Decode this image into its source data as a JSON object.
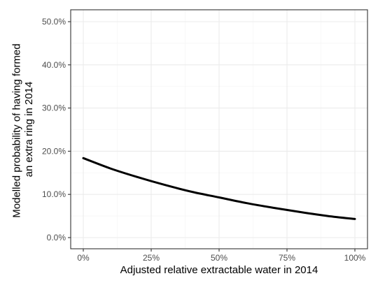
{
  "chart_data": {
    "type": "line",
    "title": "",
    "xlabel": "Adjusted relative extractable water in 2014",
    "ylabel_lines": [
      "Modelled probability of having formed",
      "an extra ring in 2014"
    ],
    "xlim": [
      0,
      100
    ],
    "ylim": [
      0,
      50
    ],
    "x_ticks": [
      0,
      25,
      50,
      75,
      100
    ],
    "x_tick_labels": [
      "0%",
      "25%",
      "50%",
      "75%",
      "100%"
    ],
    "y_ticks": [
      0,
      10,
      20,
      30,
      40,
      50
    ],
    "y_tick_labels": [
      "0.0%",
      "10.0%",
      "20.0%",
      "30.0%",
      "40.0%",
      "50.0%"
    ],
    "grid": true,
    "legend": "none",
    "series": [
      {
        "x": [
          0,
          10,
          20,
          30,
          40,
          50,
          60,
          70,
          80,
          90,
          100
        ],
        "y": [
          18.4,
          16.0,
          14.0,
          12.2,
          10.6,
          9.3,
          8.0,
          6.9,
          5.9,
          5.0,
          4.3
        ]
      }
    ]
  }
}
